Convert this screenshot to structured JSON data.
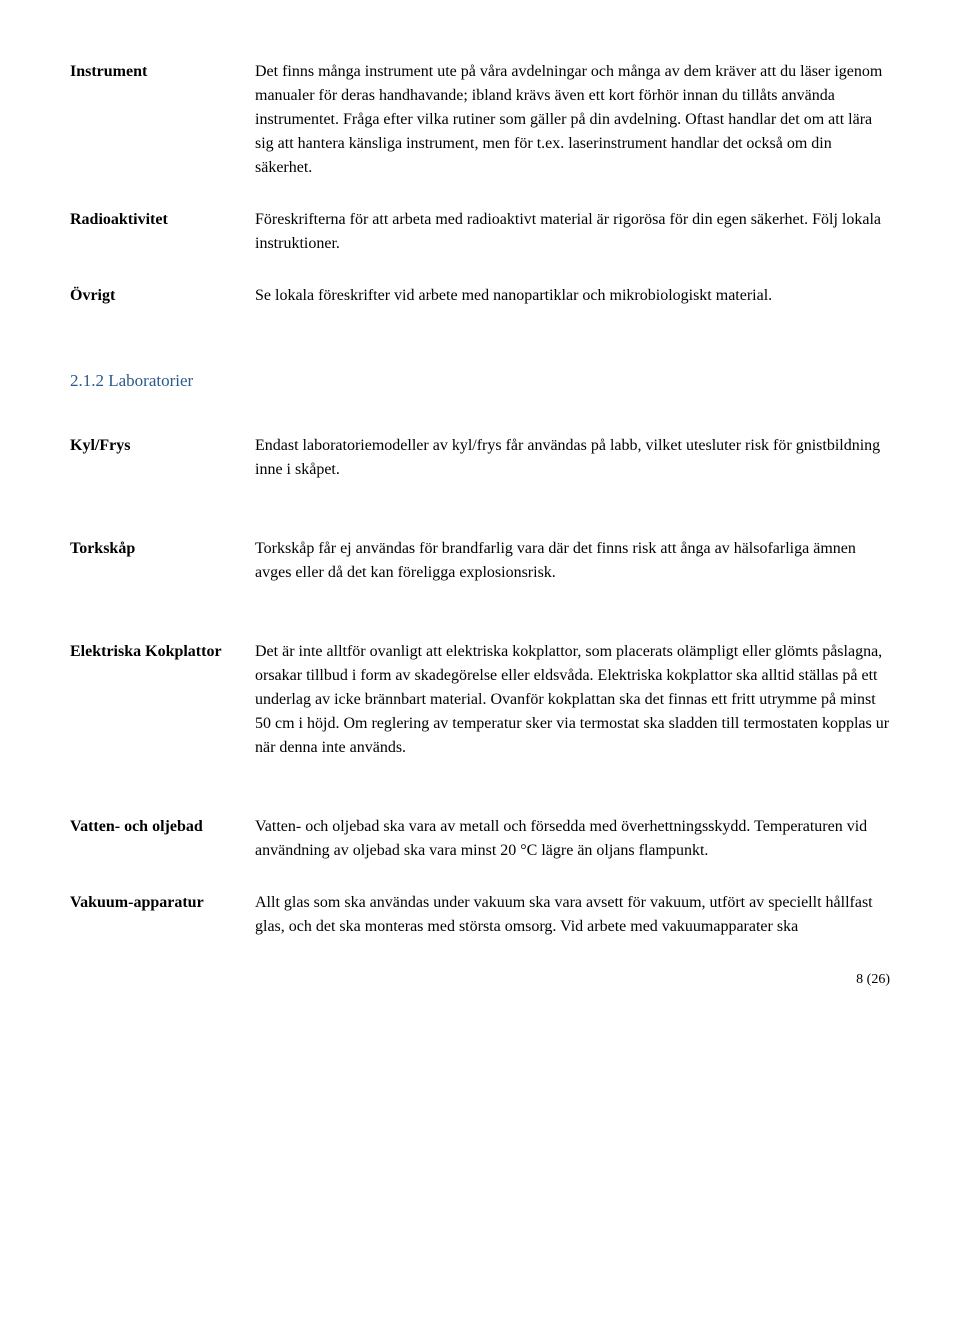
{
  "rows1": [
    {
      "label": "Instrument",
      "text": "Det finns många instrument ute på våra avdelningar och många av dem kräver att du läser igenom manualer för deras handhavande; ibland krävs även ett kort förhör innan du tillåts använda instrumentet. Fråga efter vilka rutiner som gäller på din avdelning. Oftast handlar det om att lära sig att hantera känsliga instrument, men för t.ex. laserinstrument handlar det också om din säkerhet."
    },
    {
      "label": "Radioaktivitet",
      "text": "Föreskrifterna för att arbeta med radioaktivt material är rigorösa för din egen säkerhet. Följ lokala instruktioner."
    },
    {
      "label": "Övrigt",
      "text": "Se lokala föreskrifter vid arbete med nanopartiklar och mikrobiologiskt material."
    }
  ],
  "sectionHeading": "2.1.2 Laboratorier",
  "rows2": [
    {
      "label": "Kyl/Frys",
      "text": "Endast laboratoriemodeller av kyl/frys får användas på labb, vilket utesluter risk för gnistbildning inne i skåpet."
    },
    {
      "label": "Torkskåp",
      "text": "Torkskåp får ej användas för brandfarlig vara där det finns risk att ånga av hälsofarliga ämnen avges eller då det kan föreligga explosionsrisk."
    },
    {
      "label": "Elektriska Kokplattor",
      "text": "Det är inte alltför ovanligt att elektriska kokplattor, som placerats olämpligt eller glömts påslagna, orsakar tillbud i form av skadegörelse eller eldsvåda. Elektriska kokplattor ska alltid ställas på ett underlag av icke brännbart material. Ovanför kokplattan ska det finnas ett fritt utrymme på minst 50 cm i höjd. Om reglering av temperatur sker via termostat ska sladden till termostaten kopplas ur när denna inte används."
    },
    {
      "label": "Vatten- och oljebad",
      "text": "Vatten- och oljebad ska vara av metall och försedda med överhettningsskydd. Temperaturen vid användning av oljebad ska vara minst 20 °C lägre än oljans flampunkt."
    },
    {
      "label": "Vakuum-apparatur",
      "text": "Allt glas som ska användas under vakuum ska vara avsett för vakuum, utfört av speciellt hållfast glas, och det ska monteras med största omsorg. Vid arbete med vakuumapparater ska"
    }
  ],
  "footer": "8 (26)"
}
